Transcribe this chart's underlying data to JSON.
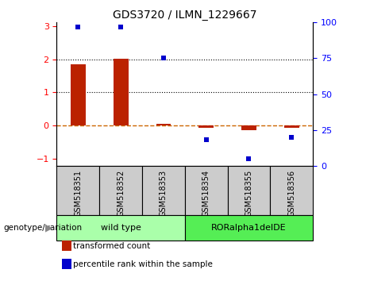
{
  "title": "GDS3720 / ILMN_1229667",
  "samples": [
    "GSM518351",
    "GSM518352",
    "GSM518353",
    "GSM518354",
    "GSM518355",
    "GSM518356"
  ],
  "transformed_counts": [
    1.85,
    2.02,
    0.05,
    -0.07,
    -0.13,
    -0.07
  ],
  "percentile_ranks": [
    97,
    97,
    75,
    18,
    5,
    20
  ],
  "groups": [
    {
      "label": "wild type",
      "indices": [
        0,
        1,
        2
      ],
      "color": "#AAFFAA"
    },
    {
      "label": "RORalpha1delDE",
      "indices": [
        3,
        4,
        5
      ],
      "color": "#55EE55"
    }
  ],
  "ylim_left": [
    -1.2,
    3.1
  ],
  "ylim_right": [
    0,
    100
  ],
  "yticks_left": [
    -1,
    0,
    1,
    2,
    3
  ],
  "yticks_right": [
    0,
    25,
    50,
    75,
    100
  ],
  "bar_color": "#BB2200",
  "scatter_color": "#0000CC",
  "hline_color": "#CC6600",
  "dotted_lines": [
    1,
    2
  ],
  "bar_width": 0.35,
  "legend_items": [
    {
      "label": "transformed count",
      "color": "#BB2200"
    },
    {
      "label": "percentile rank within the sample",
      "color": "#0000CC"
    }
  ],
  "genotype_label": "genotype/variation",
  "sample_box_color": "#CCCCCC"
}
